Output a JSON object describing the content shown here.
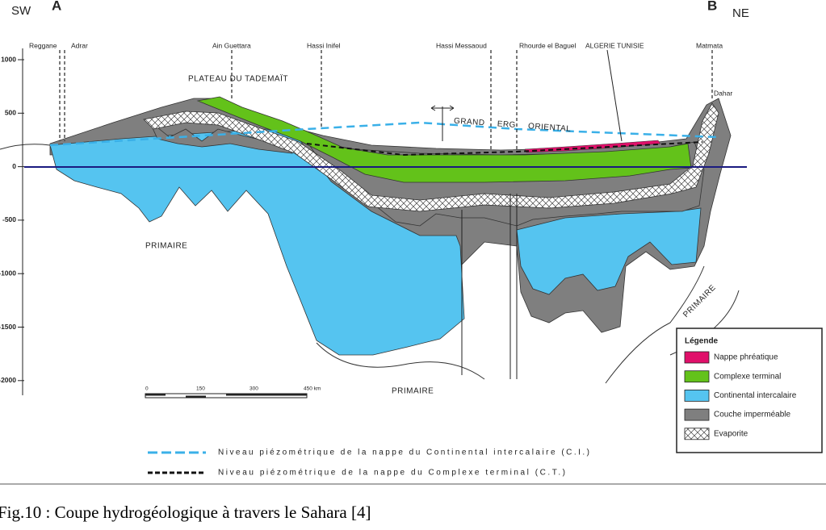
{
  "ends": {
    "left_direction": "SW",
    "left": "A",
    "right": "B",
    "right_direction": "NE"
  },
  "places": [
    "Reggane",
    "Adrar",
    "Ain Guettara",
    "Hassi Inifel",
    "Hassi Messaoud",
    "Rhourde el Baguel",
    "ALGERIE TUNISIE",
    "Matmata",
    "Dahar"
  ],
  "depth_axis": [
    "1000",
    "500",
    "0",
    "-500",
    "-1000",
    "-1500",
    "-2000"
  ],
  "regions": {
    "plateau": "PLATEAU DU TADEMAÏT",
    "erg": "GRAND ERG ORIENTAL",
    "primaire_left": "PRIMAIRE",
    "primaire_bottom": "PRIMAIRE",
    "primaire_right": "PRIMAIRE"
  },
  "legend": {
    "title": "Légende",
    "items": [
      "Nappe phréatique",
      "Complexe terminal",
      "Continental intercalaire",
      "Couche imperméable",
      "Evaporite"
    ]
  },
  "scale": [
    "0",
    "150",
    "300",
    "450 km"
  ],
  "lines": [
    "Niveau piézométrique de la nappe du Continental intercalaire (C.I.)",
    "Niveau piézométrique de la nappe du Complexe terminal (C.T.)"
  ],
  "caption": "Fig.10 : Coupe hydrogéologique à travers le Sahara [4]"
}
